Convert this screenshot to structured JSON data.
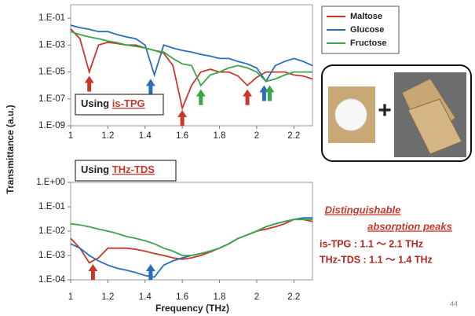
{
  "chart_data": [
    {
      "type": "line",
      "label": "Using",
      "method": "is-TPG",
      "log_y": true,
      "x": [
        1,
        1.05,
        1.1,
        1.15,
        1.2,
        1.25,
        1.3,
        1.35,
        1.4,
        1.45,
        1.5,
        1.55,
        1.6,
        1.65,
        1.7,
        1.75,
        1.8,
        1.85,
        1.9,
        1.95,
        2,
        2.05,
        2.1,
        2.15,
        2.2,
        2.25,
        2.3
      ],
      "xlim": [
        1,
        2.3
      ],
      "xticks": [
        1,
        1.2,
        1.4,
        1.6,
        1.8,
        2,
        2.2
      ],
      "ylim": [
        1e-09,
        1
      ],
      "yticks": [
        {
          "value": 0.1,
          "label": "1.E-01"
        },
        {
          "value": 0.001,
          "label": "1.E-03"
        },
        {
          "value": 1e-05,
          "label": "1.E-05"
        },
        {
          "value": 1e-07,
          "label": "1.E-07"
        },
        {
          "value": 1e-09,
          "label": "1.E-09"
        }
      ],
      "series": [
        {
          "name": "Maltose",
          "color": "#c8382a",
          "values": [
            0.016,
            0.003,
            1e-05,
            0.001,
            0.0016,
            0.0013,
            0.001,
            0.001,
            0.0006,
            0.0004,
            0.00025,
            3e-05,
            2e-08,
            1e-06,
            1e-05,
            1.6e-05,
            1e-05,
            1e-05,
            5e-06,
            1e-06,
            4e-06,
            1e-05,
            1e-05,
            1e-05,
            6e-06,
            5e-06,
            3e-06
          ]
        },
        {
          "name": "Glucose",
          "color": "#2a6ebb",
          "values": [
            0.03,
            0.02,
            0.015,
            0.01,
            0.01,
            0.006,
            0.004,
            0.003,
            0.001,
            6e-06,
            0.001,
            0.0006,
            0.0004,
            0.0003,
            0.0002,
            0.00015,
            0.0001,
            0.0001,
            6e-05,
            4e-05,
            2e-05,
            2e-06,
            3e-05,
            6e-05,
            0.0001,
            6e-05,
            3e-05
          ]
        },
        {
          "name": "Fructose",
          "color": "#3aa64a",
          "values": [
            0.01,
            0.006,
            0.004,
            0.003,
            0.002,
            0.0015,
            0.001,
            0.0008,
            0.0006,
            0.0004,
            0.0003,
            0.0001,
            4e-05,
            3e-05,
            1e-06,
            6e-06,
            1e-05,
            2e-05,
            3e-05,
            2e-05,
            1e-05,
            2e-06,
            3e-06,
            6e-06,
            1e-05,
            1e-05,
            1e-05
          ]
        }
      ],
      "peaks": [
        {
          "x": 1.1,
          "color": "#c8382a"
        },
        {
          "x": 1.43,
          "color": "#2a6ebb"
        },
        {
          "x": 1.6,
          "color": "#c8382a"
        },
        {
          "x": 1.7,
          "color": "#3aa64a"
        },
        {
          "x": 1.95,
          "color": "#c8382a"
        },
        {
          "x": 2.04,
          "color": "#2a6ebb"
        },
        {
          "x": 2.07,
          "color": "#3aa64a"
        }
      ]
    },
    {
      "type": "line",
      "label": "Using",
      "method": "THz-TDS",
      "log_y": true,
      "x": [
        1,
        1.05,
        1.1,
        1.15,
        1.2,
        1.25,
        1.3,
        1.35,
        1.4,
        1.45,
        1.5,
        1.55,
        1.6,
        1.65,
        1.7,
        1.75,
        1.8,
        1.85,
        1.9,
        1.95,
        2,
        2.05,
        2.1,
        2.15,
        2.2,
        2.25,
        2.3
      ],
      "xlim": [
        1,
        2.3
      ],
      "xticks": [
        1,
        1.2,
        1.4,
        1.6,
        1.8,
        2,
        2.2
      ],
      "ylim": [
        0.0001,
        1
      ],
      "yticks": [
        {
          "value": 1,
          "label": "1.E+00"
        },
        {
          "value": 0.1,
          "label": "1.E-01"
        },
        {
          "value": 0.01,
          "label": "1.E-02"
        },
        {
          "value": 0.001,
          "label": "1.E-03"
        },
        {
          "value": 0.0001,
          "label": "1.E-04"
        }
      ],
      "series": [
        {
          "color": "#c8382a",
          "values": [
            0.005,
            0.002,
            0.0005,
            0.0008,
            0.002,
            0.002,
            0.002,
            0.0018,
            0.0015,
            0.0012,
            0.001,
            0.0008,
            0.0007,
            0.0008,
            0.001,
            0.0014,
            0.002,
            0.003,
            0.005,
            0.007,
            0.01,
            0.012,
            0.015,
            0.02,
            0.03,
            0.03,
            0.025
          ]
        },
        {
          "color": "#2a6ebb",
          "values": [
            0.003,
            0.002,
            0.001,
            0.0006,
            0.0004,
            0.0003,
            0.00025,
            0.0002,
            0.00015,
            0.00013,
            0.0004,
            0.0006,
            0.0008,
            0.001,
            0.0012,
            0.0015,
            0.002,
            0.003,
            0.005,
            0.007,
            0.01,
            0.015,
            0.02,
            0.025,
            0.03,
            0.035,
            0.035
          ]
        },
        {
          "color": "#3aa64a",
          "values": [
            0.02,
            0.018,
            0.015,
            0.012,
            0.01,
            0.008,
            0.006,
            0.005,
            0.004,
            0.003,
            0.002,
            0.0015,
            0.001,
            0.001,
            0.0012,
            0.0015,
            0.002,
            0.003,
            0.005,
            0.007,
            0.01,
            0.015,
            0.02,
            0.025,
            0.03,
            0.03,
            0.03
          ]
        }
      ],
      "peaks": [
        {
          "x": 1.12,
          "color": "#c8382a"
        },
        {
          "x": 1.43,
          "color": "#2a6ebb"
        }
      ]
    }
  ],
  "y_label": "Transmittance (a.u.)",
  "x_label": "Frequency (THz)",
  "notes": {
    "heading": [
      "Distinguishable",
      "absorption peaks"
    ],
    "lines": [
      "is-TPG : 1.1 ～ 2.1 THz",
      "THz-TDS : 1.1 ～ 1.4 THz"
    ]
  },
  "slide_number": "44"
}
